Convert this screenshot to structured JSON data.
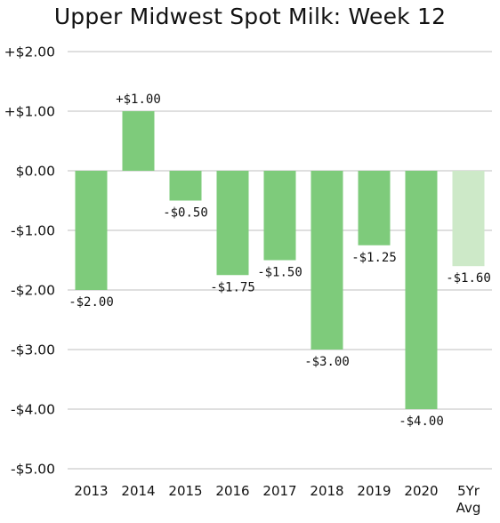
{
  "chart_data": {
    "type": "bar",
    "title": "Upper Midwest Spot Milk: Week 12",
    "xlabel": "",
    "ylabel": "",
    "ylim": [
      -5,
      2
    ],
    "y_ticks": [
      2,
      1,
      0,
      -1,
      -2,
      -3,
      -4,
      -5
    ],
    "y_tick_labels": [
      "+$2.00",
      "+$1.00",
      "$0.00",
      "-$1.00",
      "-$2.00",
      "-$3.00",
      "-$4.00",
      "-$5.00"
    ],
    "grid": "horizontal",
    "categories": [
      "2013",
      "2014",
      "2015",
      "2016",
      "2017",
      "2018",
      "2019",
      "2020",
      "5Yr Avg"
    ],
    "values": [
      -2.0,
      1.0,
      -0.5,
      -1.75,
      -1.5,
      -3.0,
      -1.25,
      -4.0,
      -1.6
    ],
    "data_labels": [
      "-$2.00",
      "+$1.00",
      "-$0.50",
      "-$1.75",
      "-$1.50",
      "-$3.00",
      "-$1.25",
      "-$4.00",
      "-$1.60"
    ],
    "colors": {
      "bar": "#7ecb7b",
      "bar_avg": "#cde9c8",
      "grid": "#bfbfbf",
      "text": "#111111"
    }
  }
}
